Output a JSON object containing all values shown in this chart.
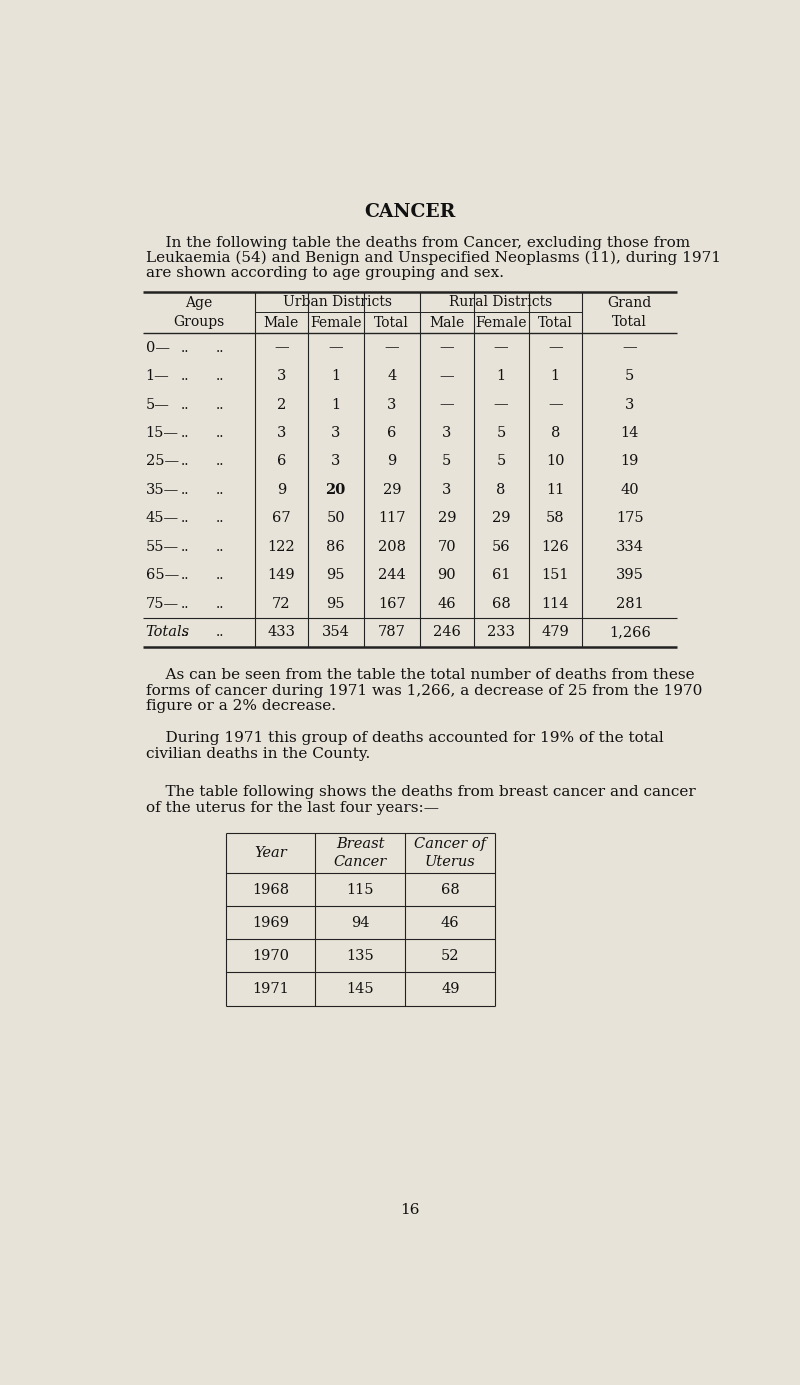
{
  "bg_color": "#e8e3d8",
  "title": "CANCER",
  "intro_text_indent": "    In the following table the deaths from Cancer, excluding those from",
  "intro_text_line2": "Leukaemia (54) and Benign and Unspecified Neoplasms (11), during 1971",
  "intro_text_line3": "are shown according to age grouping and sex.",
  "table1_rows": [
    [
      "0—",
      "—",
      "—",
      "—",
      "—",
      "—",
      "—",
      "—"
    ],
    [
      "1—",
      "3",
      "1",
      "4",
      "—",
      "1",
      "1",
      "5"
    ],
    [
      "5—",
      "2",
      "1",
      "3",
      "—",
      "—",
      "—",
      "3"
    ],
    [
      "15—",
      "3",
      "3",
      "6",
      "3",
      "5",
      "8",
      "14"
    ],
    [
      "25—",
      "6",
      "3",
      "9",
      "5",
      "5",
      "10",
      "19"
    ],
    [
      "35—",
      "9",
      "20",
      "29",
      "3",
      "8",
      "11",
      "40"
    ],
    [
      "45—",
      "67",
      "50",
      "117",
      "29",
      "29",
      "58",
      "175"
    ],
    [
      "55—",
      "122",
      "86",
      "208",
      "70",
      "56",
      "126",
      "334"
    ],
    [
      "65—",
      "149",
      "95",
      "244",
      "90",
      "61",
      "151",
      "395"
    ],
    [
      "75—",
      "72",
      "95",
      "167",
      "46",
      "68",
      "114",
      "281"
    ]
  ],
  "table1_totals": [
    "Totals",
    "433",
    "354",
    "787",
    "246",
    "233",
    "479",
    "1,266"
  ],
  "bold_cells": [
    [
      5,
      2
    ]
  ],
  "para1_indent": "    As can be seen from the table the total number of deaths from these",
  "para1_line2": "forms of cancer during 1971 was 1,266, a decrease of 25 from the 1970",
  "para1_line3": "figure or a 2% decrease.",
  "para2_indent": "    During 1971 this group of deaths accounted for 19% of the total",
  "para2_line2": "civilian deaths in the County.",
  "para3_indent": "    The table following shows the deaths from breast cancer and cancer",
  "para3_line2": "of the uterus for the last four years:—",
  "table2_rows": [
    [
      "1968",
      "115",
      "68"
    ],
    [
      "1969",
      "94",
      "46"
    ],
    [
      "1970",
      "135",
      "52"
    ],
    [
      "1971",
      "145",
      "49"
    ]
  ],
  "page_number": "16",
  "text_color": "#111111",
  "line_color": "#222222"
}
